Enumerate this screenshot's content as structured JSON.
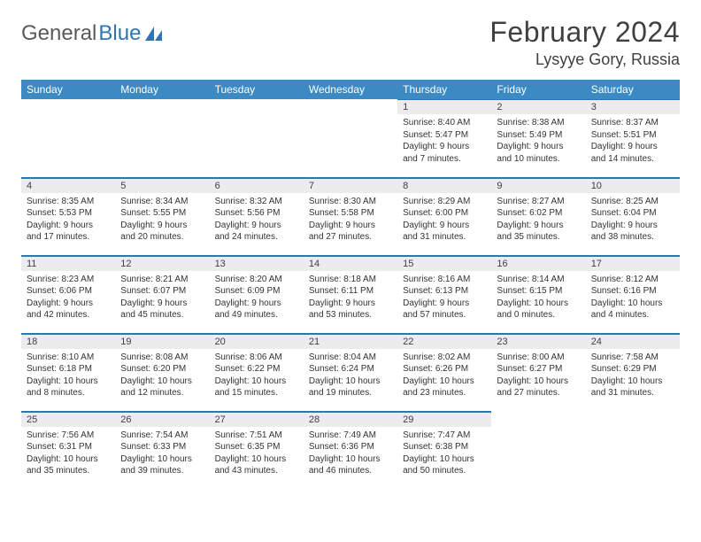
{
  "logo": {
    "part1": "General",
    "part2": "Blue"
  },
  "title": "February 2024",
  "subtitle": "Lysyye Gory, Russia",
  "colors": {
    "header_bg": "#3b8ac4",
    "header_fg": "#ffffff",
    "rule": "#2f74b5",
    "daynum_bg": "#ececec",
    "text": "#333333",
    "logo_gray": "#5a5a5a",
    "logo_blue": "#2f74b5",
    "page_bg": "#ffffff"
  },
  "days_of_week": [
    "Sunday",
    "Monday",
    "Tuesday",
    "Wednesday",
    "Thursday",
    "Friday",
    "Saturday"
  ],
  "cells": [
    {
      "day": "",
      "sunrise": "",
      "sunset": "",
      "daylight": ""
    },
    {
      "day": "",
      "sunrise": "",
      "sunset": "",
      "daylight": ""
    },
    {
      "day": "",
      "sunrise": "",
      "sunset": "",
      "daylight": ""
    },
    {
      "day": "",
      "sunrise": "",
      "sunset": "",
      "daylight": ""
    },
    {
      "day": "1",
      "sunrise": "Sunrise: 8:40 AM",
      "sunset": "Sunset: 5:47 PM",
      "daylight": "Daylight: 9 hours and 7 minutes."
    },
    {
      "day": "2",
      "sunrise": "Sunrise: 8:38 AM",
      "sunset": "Sunset: 5:49 PM",
      "daylight": "Daylight: 9 hours and 10 minutes."
    },
    {
      "day": "3",
      "sunrise": "Sunrise: 8:37 AM",
      "sunset": "Sunset: 5:51 PM",
      "daylight": "Daylight: 9 hours and 14 minutes."
    },
    {
      "day": "4",
      "sunrise": "Sunrise: 8:35 AM",
      "sunset": "Sunset: 5:53 PM",
      "daylight": "Daylight: 9 hours and 17 minutes."
    },
    {
      "day": "5",
      "sunrise": "Sunrise: 8:34 AM",
      "sunset": "Sunset: 5:55 PM",
      "daylight": "Daylight: 9 hours and 20 minutes."
    },
    {
      "day": "6",
      "sunrise": "Sunrise: 8:32 AM",
      "sunset": "Sunset: 5:56 PM",
      "daylight": "Daylight: 9 hours and 24 minutes."
    },
    {
      "day": "7",
      "sunrise": "Sunrise: 8:30 AM",
      "sunset": "Sunset: 5:58 PM",
      "daylight": "Daylight: 9 hours and 27 minutes."
    },
    {
      "day": "8",
      "sunrise": "Sunrise: 8:29 AM",
      "sunset": "Sunset: 6:00 PM",
      "daylight": "Daylight: 9 hours and 31 minutes."
    },
    {
      "day": "9",
      "sunrise": "Sunrise: 8:27 AM",
      "sunset": "Sunset: 6:02 PM",
      "daylight": "Daylight: 9 hours and 35 minutes."
    },
    {
      "day": "10",
      "sunrise": "Sunrise: 8:25 AM",
      "sunset": "Sunset: 6:04 PM",
      "daylight": "Daylight: 9 hours and 38 minutes."
    },
    {
      "day": "11",
      "sunrise": "Sunrise: 8:23 AM",
      "sunset": "Sunset: 6:06 PM",
      "daylight": "Daylight: 9 hours and 42 minutes."
    },
    {
      "day": "12",
      "sunrise": "Sunrise: 8:21 AM",
      "sunset": "Sunset: 6:07 PM",
      "daylight": "Daylight: 9 hours and 45 minutes."
    },
    {
      "day": "13",
      "sunrise": "Sunrise: 8:20 AM",
      "sunset": "Sunset: 6:09 PM",
      "daylight": "Daylight: 9 hours and 49 minutes."
    },
    {
      "day": "14",
      "sunrise": "Sunrise: 8:18 AM",
      "sunset": "Sunset: 6:11 PM",
      "daylight": "Daylight: 9 hours and 53 minutes."
    },
    {
      "day": "15",
      "sunrise": "Sunrise: 8:16 AM",
      "sunset": "Sunset: 6:13 PM",
      "daylight": "Daylight: 9 hours and 57 minutes."
    },
    {
      "day": "16",
      "sunrise": "Sunrise: 8:14 AM",
      "sunset": "Sunset: 6:15 PM",
      "daylight": "Daylight: 10 hours and 0 minutes."
    },
    {
      "day": "17",
      "sunrise": "Sunrise: 8:12 AM",
      "sunset": "Sunset: 6:16 PM",
      "daylight": "Daylight: 10 hours and 4 minutes."
    },
    {
      "day": "18",
      "sunrise": "Sunrise: 8:10 AM",
      "sunset": "Sunset: 6:18 PM",
      "daylight": "Daylight: 10 hours and 8 minutes."
    },
    {
      "day": "19",
      "sunrise": "Sunrise: 8:08 AM",
      "sunset": "Sunset: 6:20 PM",
      "daylight": "Daylight: 10 hours and 12 minutes."
    },
    {
      "day": "20",
      "sunrise": "Sunrise: 8:06 AM",
      "sunset": "Sunset: 6:22 PM",
      "daylight": "Daylight: 10 hours and 15 minutes."
    },
    {
      "day": "21",
      "sunrise": "Sunrise: 8:04 AM",
      "sunset": "Sunset: 6:24 PM",
      "daylight": "Daylight: 10 hours and 19 minutes."
    },
    {
      "day": "22",
      "sunrise": "Sunrise: 8:02 AM",
      "sunset": "Sunset: 6:26 PM",
      "daylight": "Daylight: 10 hours and 23 minutes."
    },
    {
      "day": "23",
      "sunrise": "Sunrise: 8:00 AM",
      "sunset": "Sunset: 6:27 PM",
      "daylight": "Daylight: 10 hours and 27 minutes."
    },
    {
      "day": "24",
      "sunrise": "Sunrise: 7:58 AM",
      "sunset": "Sunset: 6:29 PM",
      "daylight": "Daylight: 10 hours and 31 minutes."
    },
    {
      "day": "25",
      "sunrise": "Sunrise: 7:56 AM",
      "sunset": "Sunset: 6:31 PM",
      "daylight": "Daylight: 10 hours and 35 minutes."
    },
    {
      "day": "26",
      "sunrise": "Sunrise: 7:54 AM",
      "sunset": "Sunset: 6:33 PM",
      "daylight": "Daylight: 10 hours and 39 minutes."
    },
    {
      "day": "27",
      "sunrise": "Sunrise: 7:51 AM",
      "sunset": "Sunset: 6:35 PM",
      "daylight": "Daylight: 10 hours and 43 minutes."
    },
    {
      "day": "28",
      "sunrise": "Sunrise: 7:49 AM",
      "sunset": "Sunset: 6:36 PM",
      "daylight": "Daylight: 10 hours and 46 minutes."
    },
    {
      "day": "29",
      "sunrise": "Sunrise: 7:47 AM",
      "sunset": "Sunset: 6:38 PM",
      "daylight": "Daylight: 10 hours and 50 minutes."
    },
    {
      "day": "",
      "sunrise": "",
      "sunset": "",
      "daylight": ""
    },
    {
      "day": "",
      "sunrise": "",
      "sunset": "",
      "daylight": ""
    }
  ]
}
